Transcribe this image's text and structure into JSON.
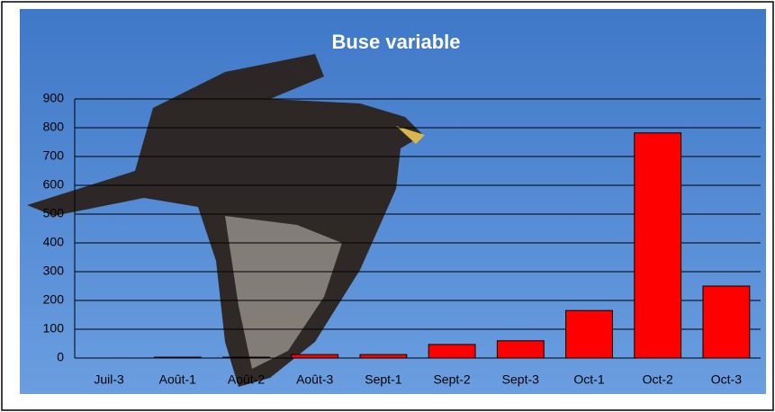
{
  "chart_data": {
    "type": "bar",
    "title": "Buse variable",
    "categories": [
      "Juil-3",
      "Août-1",
      "Août-2",
      "Août-3",
      "Sept-1",
      "Sept-2",
      "Sept-3",
      "Oct-1",
      "Oct-2",
      "Oct-3"
    ],
    "values": [
      0,
      3,
      3,
      12,
      12,
      47,
      60,
      165,
      782,
      250
    ],
    "color": "#ff0000",
    "ylim": [
      0,
      900
    ],
    "yticks": [
      0,
      100,
      200,
      300,
      400,
      500,
      600,
      700,
      800,
      900
    ],
    "grid": true
  }
}
